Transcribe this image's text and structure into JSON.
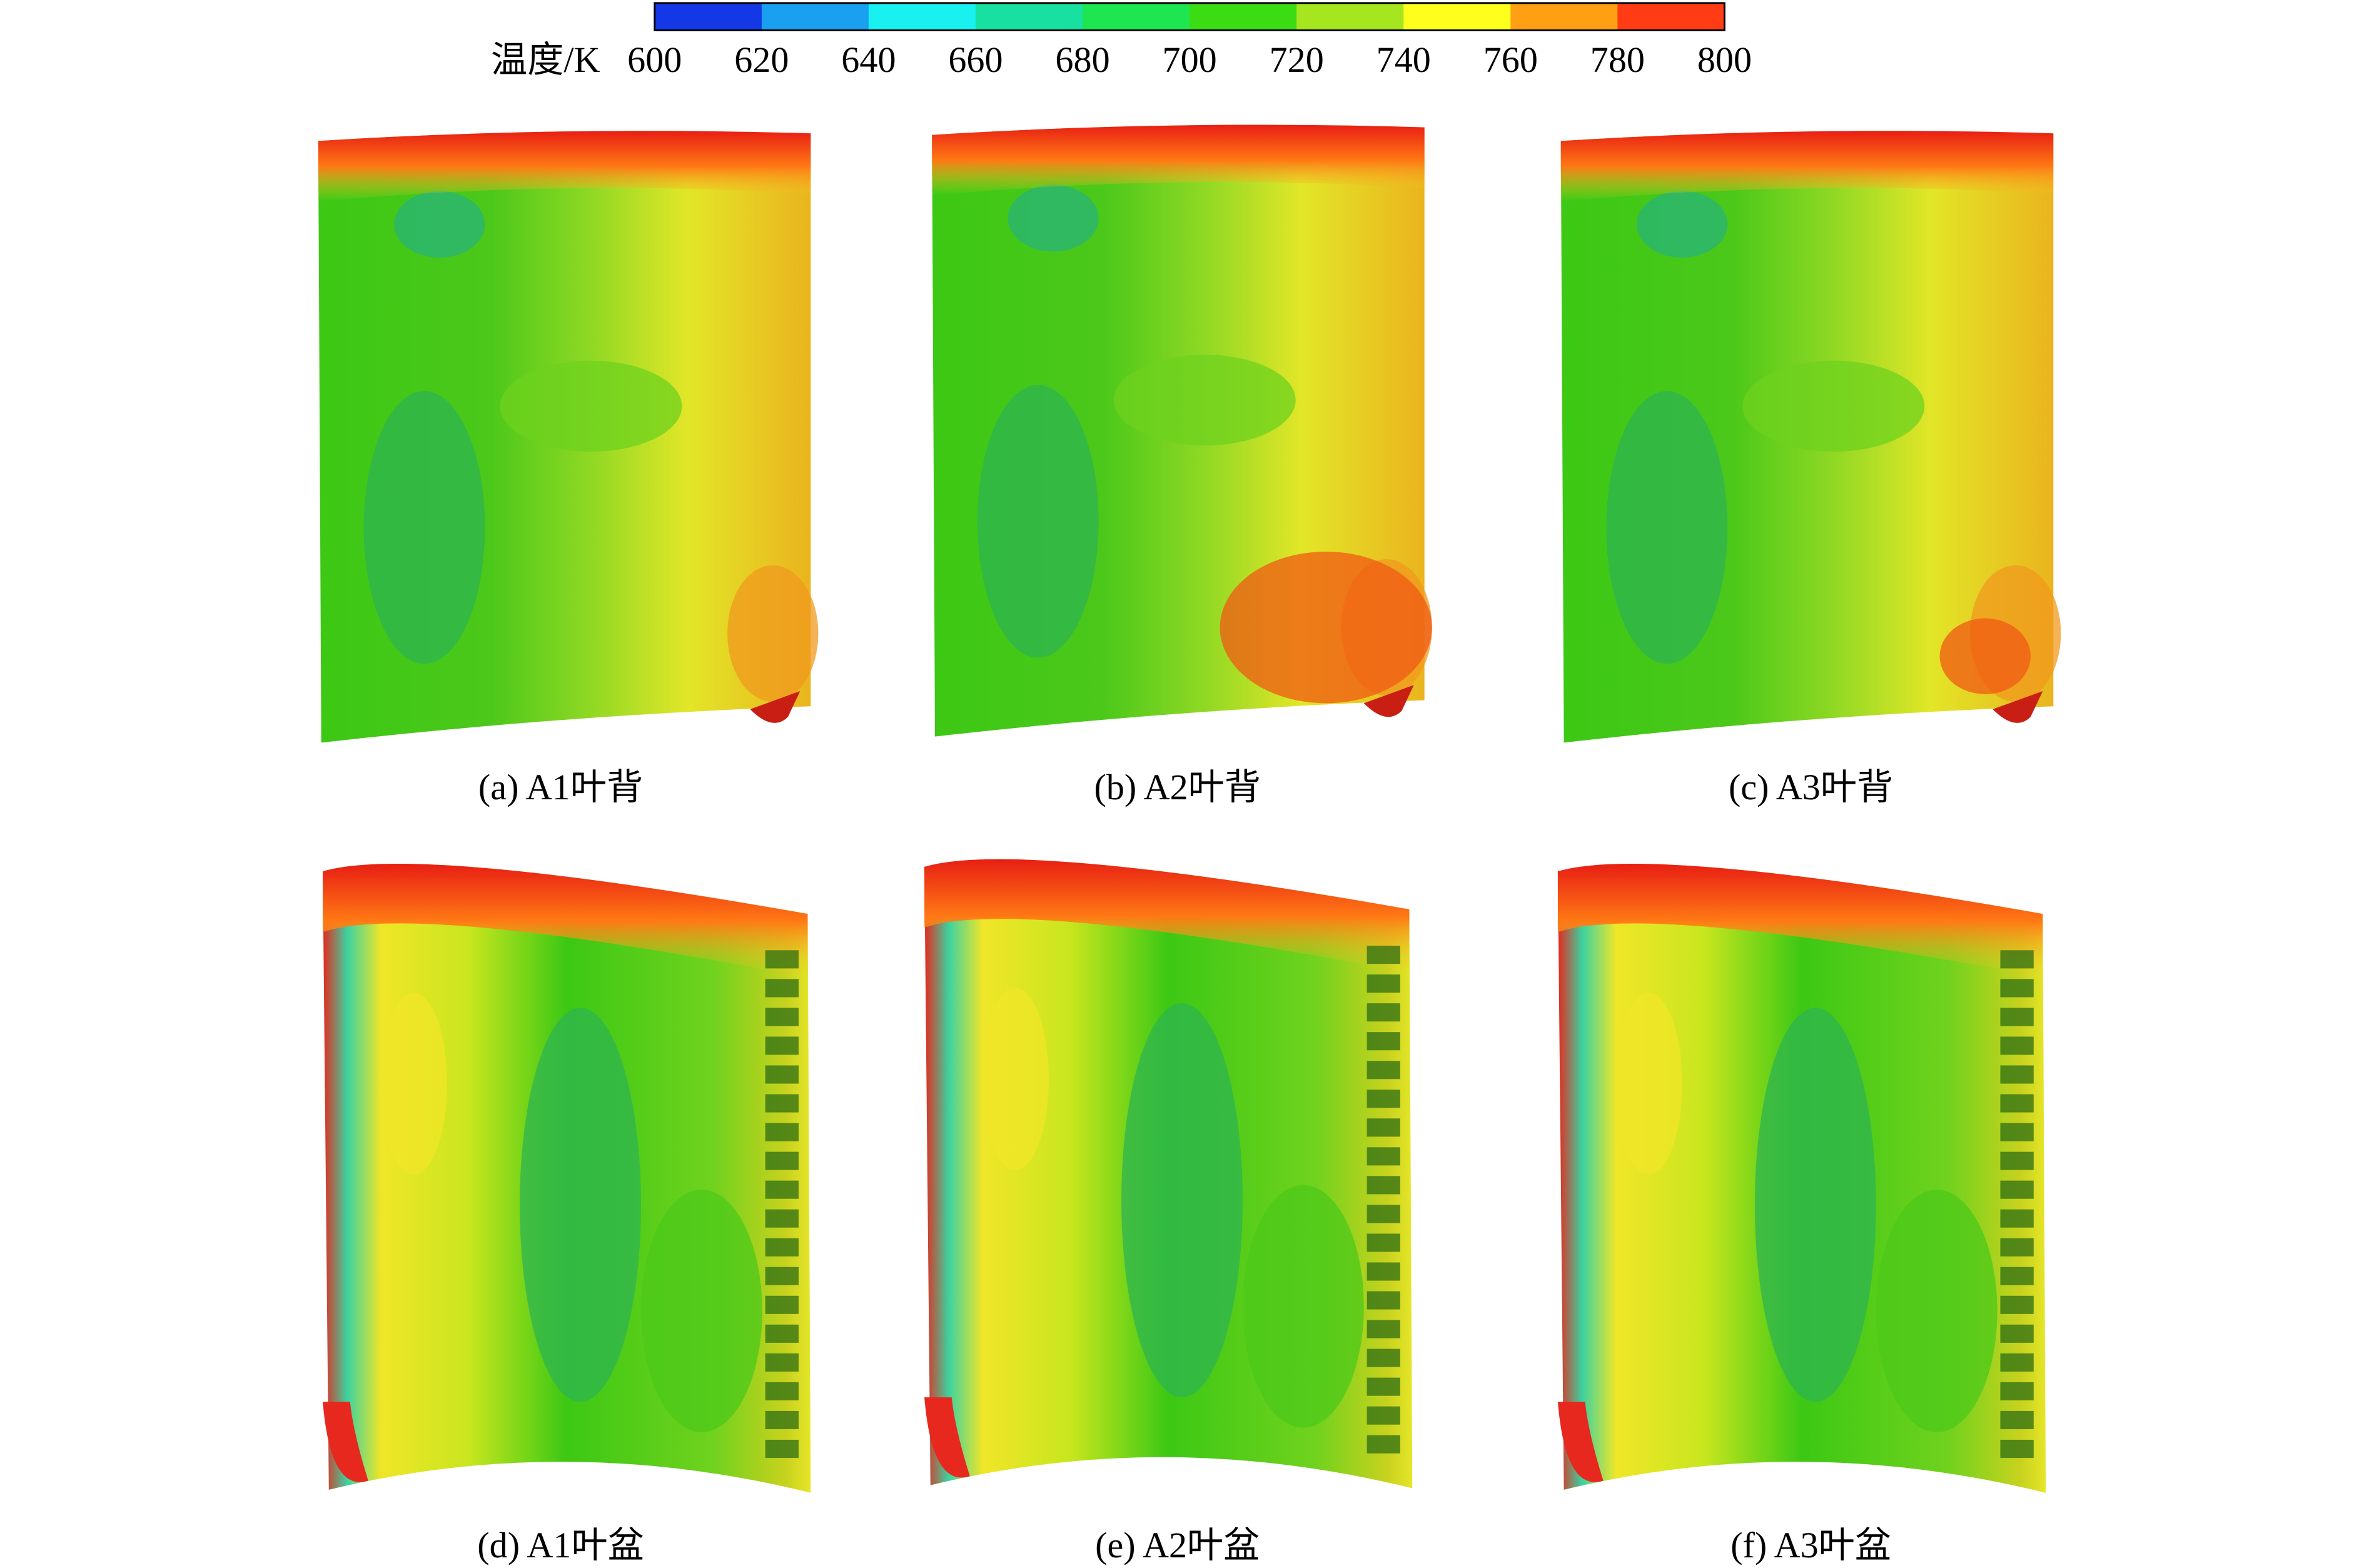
{
  "colorbar": {
    "label": "温度/K",
    "ticks": [
      600,
      620,
      640,
      660,
      680,
      700,
      720,
      740,
      760,
      780,
      800
    ],
    "colors": [
      "#1438e6",
      "#1aa0f0",
      "#19f0f0",
      "#18e0a0",
      "#1ee650",
      "#3cdc14",
      "#a6e61e",
      "#ffff1e",
      "#ffa014",
      "#ff3c14"
    ]
  },
  "panels": [
    {
      "caption": "(a) A1叶背"
    },
    {
      "caption": "(b) A2叶背"
    },
    {
      "caption": "(c) A3叶背"
    },
    {
      "caption": "(d) A1叶盆"
    },
    {
      "caption": "(e) A2叶盆"
    },
    {
      "caption": "(f) A3叶盆"
    }
  ]
}
